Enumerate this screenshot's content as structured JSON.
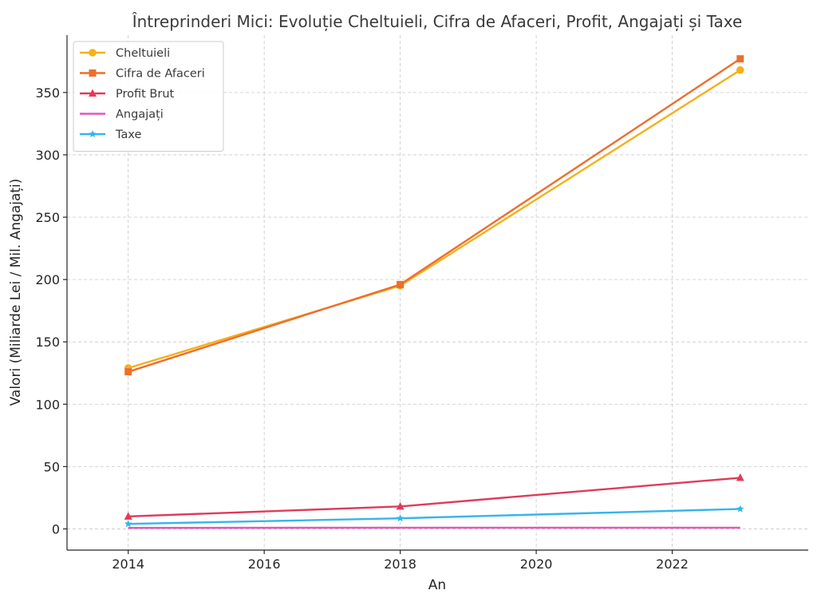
{
  "chart_data": {
    "type": "line",
    "title": "Întreprinderi Mici: Evoluție Cheltuieli, Cifra de Afaceri, Profit, Angajați și Taxe",
    "xlabel": "An",
    "ylabel": "Valori (Miliarde Lei / Mil. Angajați)",
    "x": [
      2014,
      2018,
      2023
    ],
    "xlim": [
      2013.1,
      2024.0
    ],
    "ylim": [
      -17,
      396
    ],
    "xticks": [
      2014,
      2016,
      2018,
      2020,
      2022
    ],
    "yticks": [
      0,
      50,
      100,
      150,
      200,
      250,
      300,
      350
    ],
    "grid": true,
    "legend_position": "top-left",
    "series": [
      {
        "name": "Cheltuieli",
        "values": [
          129,
          195,
          368
        ],
        "color": "#f5b01a",
        "marker": "circle"
      },
      {
        "name": "Cifra de Afaceri",
        "values": [
          126,
          196,
          377
        ],
        "color": "#ec6f2d",
        "marker": "square"
      },
      {
        "name": "Profit Brut",
        "values": [
          10,
          18,
          41
        ],
        "color": "#e03a5a",
        "marker": "triangle"
      },
      {
        "name": "Angajați",
        "values": [
          0.8,
          1.0,
          1.0
        ],
        "color": "#e455be",
        "marker": "none"
      },
      {
        "name": "Taxe",
        "values": [
          4,
          8.5,
          16
        ],
        "color": "#35b5ec",
        "marker": "star"
      }
    ]
  }
}
